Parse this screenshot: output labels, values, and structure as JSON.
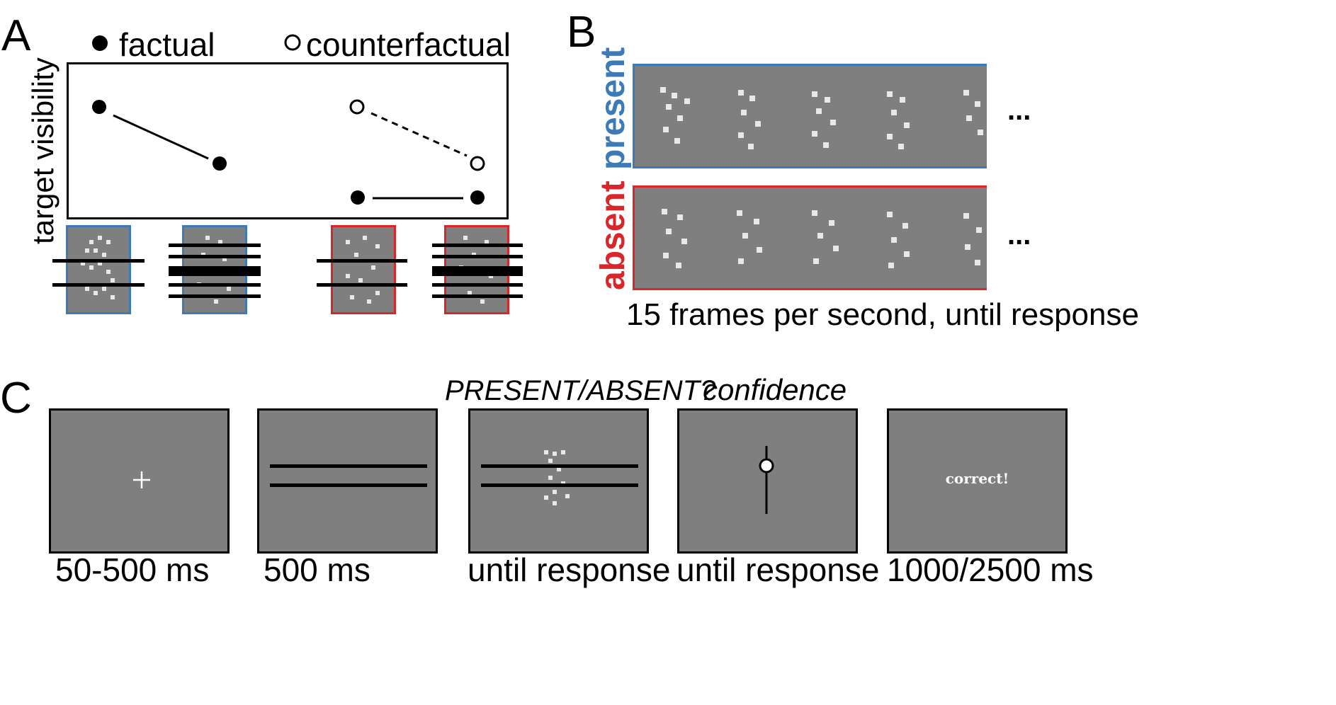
{
  "panel_a": {
    "letter": "A",
    "legend_factual": "factual",
    "legend_counterfactual": "counterfactual",
    "ylabel": "target visibility"
  },
  "panel_b": {
    "letter": "B",
    "row_present_label": "present",
    "row_absent_label": "absent",
    "ellipsis": "...",
    "caption": "15 frames per second, until response",
    "colors": {
      "present": "#3d7ab8",
      "absent": "#d9262b"
    }
  },
  "panel_c": {
    "letter": "C",
    "question_label": "PRESENT/ABSENT?",
    "confidence_label": "confidence",
    "feedback_text": "correct!",
    "screens": [
      {
        "duration": "50-500 ms"
      },
      {
        "duration": "500 ms"
      },
      {
        "duration": "until response"
      },
      {
        "duration": "until response"
      },
      {
        "duration": "1000/2500 ms"
      }
    ]
  }
}
